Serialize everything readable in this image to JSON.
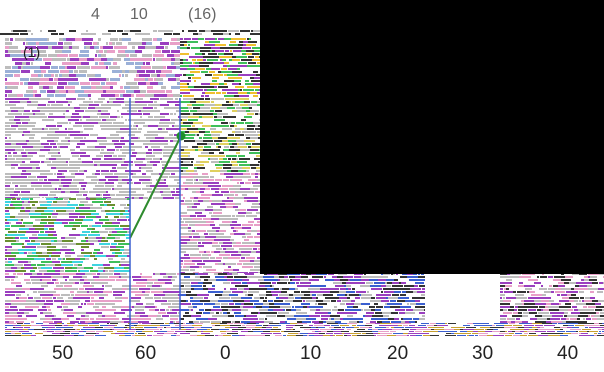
{
  "top_labels": [
    "4",
    "10",
    "(16)"
  ],
  "row_label": "(1)",
  "bottom_labels": [
    "50",
    "60",
    "0",
    "10",
    "20",
    "30",
    "40"
  ],
  "colors": {
    "background": "#ffffff",
    "redacted_region": "#000000",
    "connector_line": "#2e8b2e",
    "connector_node": "#1f8f2a",
    "stripe_purple": "#9a3fbf",
    "stripe_gray": "#bdbdbd",
    "stripe_green": "#3fbf5a",
    "stripe_cyan": "#3fd4e0",
    "stripe_pink": "#e8a0c8",
    "stripe_dark": "#333333",
    "stripe_blue": "#3a5fd0"
  }
}
